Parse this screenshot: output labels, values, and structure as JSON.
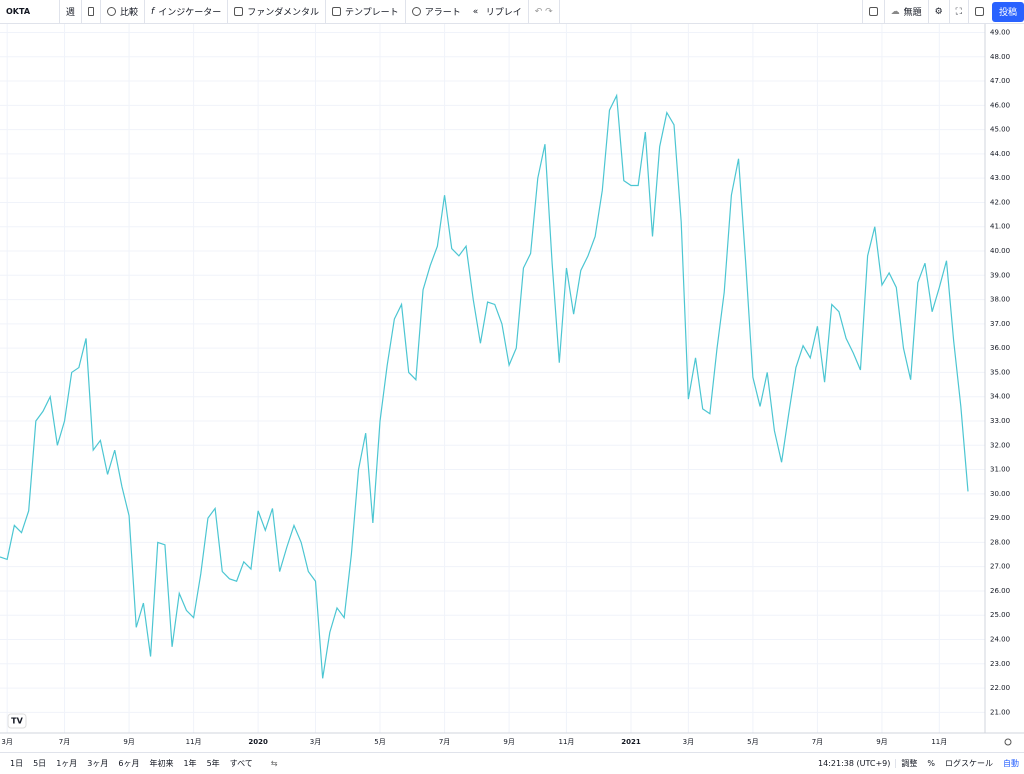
{
  "header": {
    "symbol": "OKTA",
    "interval": "週",
    "buttons": [
      "比較",
      "インジケーター",
      "ファンダメンタル",
      "テンプレート",
      "アラート",
      "リプレイ"
    ],
    "layout_name": "無題",
    "publish": "投稿"
  },
  "footer": {
    "ranges": [
      "1日",
      "5日",
      "1ヶ月",
      "3ヶ月",
      "6ヶ月",
      "年初来",
      "1年",
      "5年",
      "すべて"
    ],
    "clock": "14:21:38 (UTC+9)",
    "options": [
      "調整",
      "%",
      "ログスケール",
      "自動"
    ]
  },
  "chart_data": {
    "type": "line",
    "color": "#4cc6d2",
    "grid": true,
    "categories": [
      null,
      "3月",
      null,
      null,
      null,
      null,
      null,
      null,
      null,
      "7月",
      null,
      null,
      null,
      null,
      null,
      null,
      null,
      null,
      "9月",
      null,
      null,
      null,
      null,
      null,
      null,
      null,
      null,
      "11月",
      null,
      null,
      null,
      null,
      null,
      null,
      null,
      null,
      "2020",
      null,
      null,
      null,
      null,
      null,
      null,
      null,
      "3月",
      null,
      null,
      null,
      null,
      null,
      null,
      null,
      null,
      "5月",
      null,
      null,
      null,
      null,
      null,
      null,
      null,
      null,
      "7月",
      null,
      null,
      null,
      null,
      null,
      null,
      null,
      null,
      "9月",
      null,
      null,
      null,
      null,
      null,
      null,
      null,
      "11月",
      null,
      null,
      null,
      null,
      null,
      null,
      null,
      null,
      "2021",
      null,
      null,
      null,
      null,
      null,
      null,
      null,
      "3月",
      null,
      null,
      null,
      null,
      null,
      null,
      null,
      null,
      "5月",
      null,
      null,
      null,
      null,
      null,
      null,
      null,
      null,
      "7月",
      null,
      null,
      null,
      null,
      null,
      null,
      null,
      null,
      "9月",
      null,
      null,
      null,
      null,
      null,
      null,
      null,
      "11月",
      null,
      null,
      null,
      null
    ],
    "values": [
      27.4,
      27.3,
      28.7,
      28.4,
      29.3,
      33.0,
      33.4,
      34.0,
      32.0,
      33.0,
      35.0,
      35.2,
      36.4,
      31.8,
      32.2,
      30.8,
      31.8,
      30.3,
      29.1,
      24.5,
      25.5,
      23.3,
      28.0,
      27.9,
      23.7,
      25.9,
      25.2,
      24.9,
      26.7,
      29.0,
      29.4,
      26.8,
      26.5,
      26.4,
      27.2,
      26.9,
      29.3,
      28.5,
      29.4,
      26.8,
      27.8,
      28.7,
      28.0,
      26.8,
      26.4,
      22.4,
      24.3,
      25.3,
      24.9,
      27.5,
      31.0,
      32.5,
      28.8,
      33.0,
      35.3,
      37.2,
      37.8,
      35.0,
      34.7,
      38.4,
      39.4,
      40.2,
      42.3,
      40.1,
      39.8,
      40.2,
      38.0,
      36.2,
      37.9,
      37.8,
      37.0,
      35.3,
      36.0,
      39.3,
      39.9,
      43.0,
      44.4,
      39.5,
      35.4,
      39.3,
      37.4,
      39.2,
      39.8,
      40.6,
      42.5,
      45.8,
      46.4,
      42.9,
      42.7,
      42.7,
      44.9,
      40.6,
      44.3,
      45.7,
      45.2,
      41.2,
      33.9,
      35.6,
      33.5,
      33.3,
      36.0,
      38.3,
      42.3,
      43.8,
      39.5,
      34.8,
      33.6,
      35.0,
      32.6,
      31.3,
      33.3,
      35.2,
      36.1,
      35.6,
      36.9,
      34.6,
      37.8,
      37.5,
      36.4,
      35.8,
      35.1,
      39.8,
      41.0,
      38.6,
      39.1,
      38.5,
      36.0,
      34.7,
      38.7,
      39.5,
      37.5,
      38.5,
      39.6,
      36.3,
      33.6,
      30.1
    ],
    "ylim": [
      20.15,
      49.35
    ],
    "yticks": [
      {
        "value": 21,
        "label": "21.00"
      },
      {
        "value": 22,
        "label": "22.00"
      },
      {
        "value": 23,
        "label": "23.00"
      },
      {
        "value": 24,
        "label": "24.00"
      },
      {
        "value": 25,
        "label": "25.00"
      },
      {
        "value": 26,
        "label": "26.00"
      },
      {
        "value": 27,
        "label": "27.00"
      },
      {
        "value": 28,
        "label": "28.00"
      },
      {
        "value": 29,
        "label": "29.00"
      },
      {
        "value": 30,
        "label": "30.00"
      },
      {
        "value": 31,
        "label": "31.00"
      },
      {
        "value": 32,
        "label": "32.00"
      },
      {
        "value": 33,
        "label": "33.00"
      },
      {
        "value": 34,
        "label": "34.00"
      },
      {
        "value": 35,
        "label": "35.00"
      },
      {
        "value": 36,
        "label": "36.00"
      },
      {
        "value": 37,
        "label": "37.00"
      },
      {
        "value": 38,
        "label": "38.00"
      },
      {
        "value": 39,
        "label": "39.00"
      },
      {
        "value": 40,
        "label": "40.00"
      },
      {
        "value": 41,
        "label": "41.00"
      },
      {
        "value": 42,
        "label": "42.00"
      },
      {
        "value": 43,
        "label": "43.00"
      },
      {
        "value": 44,
        "label": "44.00"
      },
      {
        "value": 45,
        "label": "45.00"
      },
      {
        "value": 46,
        "label": "46.00"
      },
      {
        "value": 47,
        "label": "47.00"
      },
      {
        "value": 48,
        "label": "48.00"
      },
      {
        "value": 49,
        "label": "49.00"
      }
    ]
  }
}
